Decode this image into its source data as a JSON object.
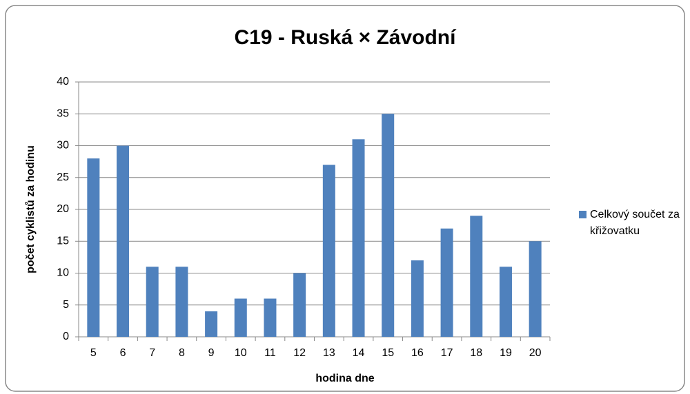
{
  "chart_data": {
    "type": "bar",
    "title": "C19 - Ruská × Závodní",
    "x_label": "hodina dne",
    "y_label": "počet cyklistů za hodinu",
    "categories": [
      "5",
      "6",
      "7",
      "8",
      "9",
      "10",
      "11",
      "12",
      "13",
      "14",
      "15",
      "16",
      "17",
      "18",
      "19",
      "20"
    ],
    "series": [
      {
        "name": "Celkový součet za křižovatku",
        "color": "#4f81bd",
        "values": [
          28,
          30,
          11,
          11,
          4,
          6,
          6,
          10,
          27,
          31,
          35,
          12,
          17,
          19,
          11,
          15
        ]
      }
    ],
    "ylim": [
      0,
      40
    ],
    "yticks": [
      0,
      5,
      10,
      15,
      20,
      25,
      30,
      35,
      40
    ],
    "grid": true,
    "legend": "right"
  }
}
